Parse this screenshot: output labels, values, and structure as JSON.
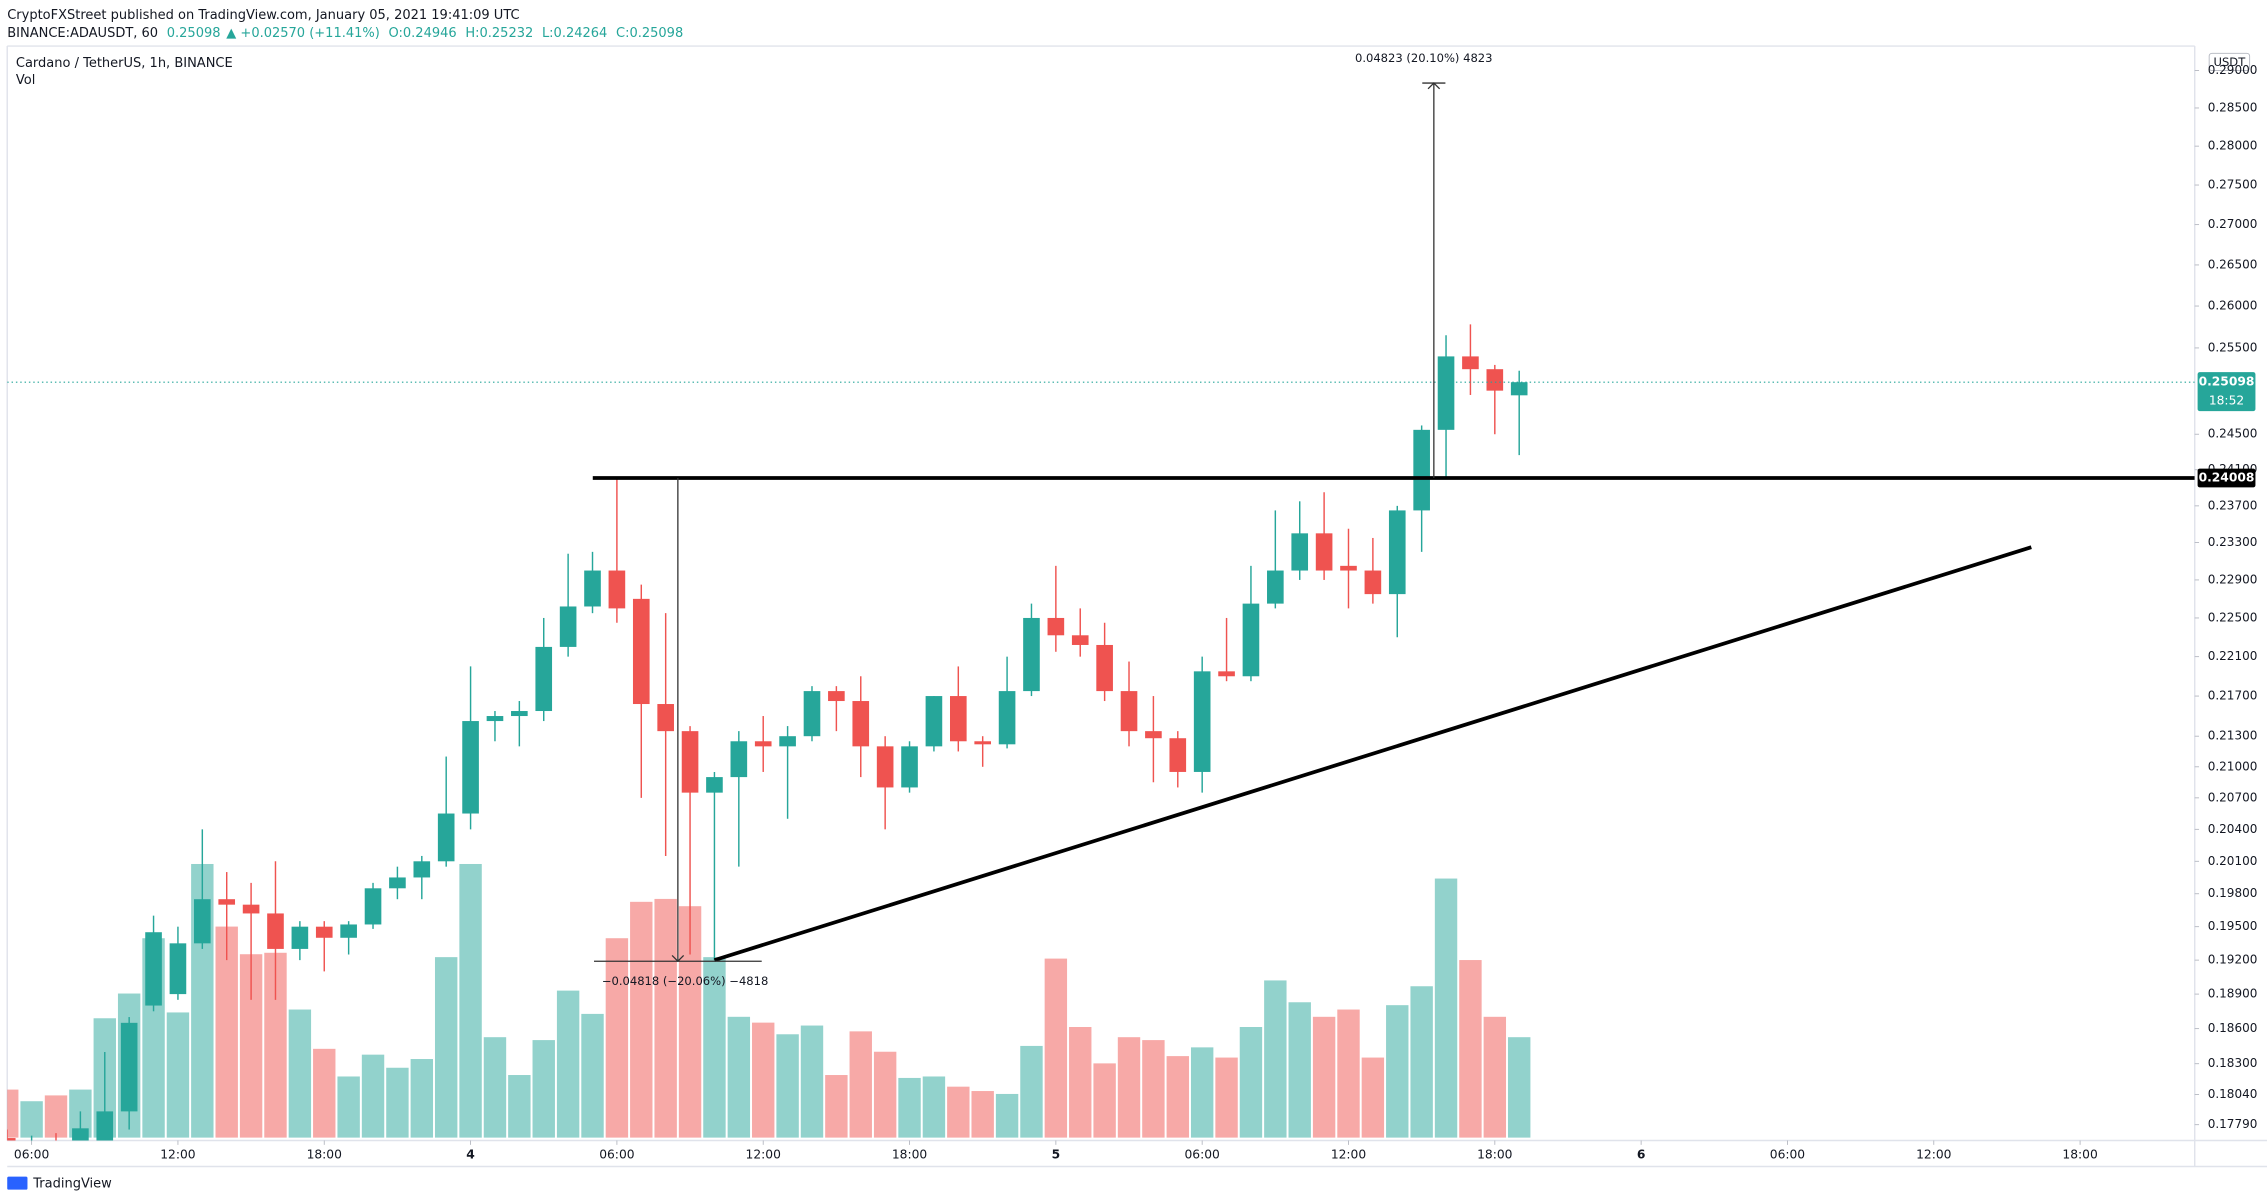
{
  "header": {
    "published": "CryptoFXStreet published on TradingView.com, January 05, 2021 19:41:09 UTC",
    "symbol": "BINANCE:ADAUSDT, 60",
    "last": "0.25098",
    "change": "▲ +0.02570 (+11.41%)",
    "ohlc": [
      "O:0.24946",
      "H:0.25232",
      "L:0.24264",
      "C:0.25098"
    ]
  },
  "chart_data": {
    "type": "candlestick",
    "title": "Cardano / TetherUS, 1h, BINANCE",
    "volume_label": "Vol",
    "currency": "USDT",
    "log_scale": true,
    "grid": false,
    "up_color": "#26a69a",
    "down_color": "#ef5350",
    "x": [
      5,
      6,
      7,
      8,
      9,
      10,
      11,
      12,
      13,
      14,
      15,
      16,
      17,
      18,
      19,
      20,
      21,
      22,
      23,
      24,
      25,
      26,
      27,
      28,
      29,
      30,
      31,
      32,
      33,
      34,
      35,
      36,
      37,
      38,
      39,
      40,
      41,
      42,
      43,
      44,
      45,
      46,
      47,
      48,
      49,
      50,
      51,
      52,
      53,
      54,
      55,
      56,
      57,
      58,
      59,
      60,
      61,
      62,
      63,
      64,
      65,
      66,
      67
    ],
    "open": [
      0.1768,
      0.1755,
      0.1765,
      0.1758,
      0.1765,
      0.179,
      0.188,
      0.189,
      0.1935,
      0.1975,
      0.197,
      0.1962,
      0.193,
      0.195,
      0.194,
      0.1952,
      0.1985,
      0.1995,
      0.201,
      0.2055,
      0.2145,
      0.215,
      0.2155,
      0.222,
      0.2262,
      0.23,
      0.227,
      0.2162,
      0.2135,
      0.2075,
      0.209,
      0.2125,
      0.212,
      0.213,
      0.2175,
      0.2165,
      0.212,
      0.208,
      0.212,
      0.217,
      0.2125,
      0.2122,
      0.2175,
      0.225,
      0.2232,
      0.2222,
      0.2175,
      0.2135,
      0.2128,
      0.2095,
      0.2195,
      0.219,
      0.2265,
      0.23,
      0.234,
      0.2305,
      0.23,
      0.2275,
      0.2365,
      0.2455,
      0.254,
      0.2525,
      0.24946
    ],
    "high": [
      0.1775,
      0.177,
      0.1772,
      0.179,
      0.184,
      0.187,
      0.196,
      0.195,
      0.204,
      0.2,
      0.199,
      0.201,
      0.1955,
      0.1955,
      0.1955,
      0.199,
      0.2005,
      0.2015,
      0.211,
      0.22,
      0.2155,
      0.2165,
      0.225,
      0.2318,
      0.232,
      0.24,
      0.2285,
      0.2255,
      0.214,
      0.2095,
      0.2135,
      0.215,
      0.214,
      0.218,
      0.218,
      0.219,
      0.213,
      0.2125,
      0.217,
      0.22,
      0.213,
      0.221,
      0.2265,
      0.2305,
      0.226,
      0.2245,
      0.2205,
      0.217,
      0.2135,
      0.221,
      0.225,
      0.2305,
      0.2365,
      0.2375,
      0.2385,
      0.2345,
      0.2335,
      0.237,
      0.246,
      0.2565,
      0.2578,
      0.253,
      0.25232
    ],
    "low": [
      0.1755,
      0.175,
      0.1752,
      0.175,
      0.176,
      0.1775,
      0.1875,
      0.1885,
      0.193,
      0.192,
      0.1885,
      0.1885,
      0.192,
      0.191,
      0.1925,
      0.1948,
      0.1975,
      0.1975,
      0.2005,
      0.204,
      0.2125,
      0.212,
      0.2145,
      0.221,
      0.2255,
      0.2245,
      0.207,
      0.2015,
      0.1925,
      0.192,
      0.2005,
      0.2095,
      0.205,
      0.2125,
      0.2135,
      0.209,
      0.204,
      0.2075,
      0.2115,
      0.2115,
      0.21,
      0.2118,
      0.217,
      0.2215,
      0.221,
      0.2165,
      0.212,
      0.2085,
      0.208,
      0.2075,
      0.2185,
      0.2185,
      0.226,
      0.229,
      0.229,
      0.226,
      0.2265,
      0.223,
      0.232,
      0.24,
      0.2495,
      0.245,
      0.24264
    ],
    "close": [
      0.176,
      0.1765,
      0.1758,
      0.1776,
      0.179,
      0.1865,
      0.1945,
      0.1935,
      0.1975,
      0.197,
      0.1962,
      0.193,
      0.195,
      0.194,
      0.1952,
      0.1985,
      0.1995,
      0.201,
      0.2055,
      0.2145,
      0.215,
      0.2155,
      0.222,
      0.2262,
      0.23,
      0.226,
      0.2162,
      0.2135,
      0.2075,
      0.209,
      0.2125,
      0.212,
      0.213,
      0.2175,
      0.2165,
      0.212,
      0.208,
      0.212,
      0.217,
      0.2125,
      0.2122,
      0.2175,
      0.225,
      0.2232,
      0.2222,
      0.2175,
      0.2135,
      0.2128,
      0.2095,
      0.2195,
      0.219,
      0.2265,
      0.23,
      0.234,
      0.23,
      0.23,
      0.2275,
      0.2365,
      0.2455,
      0.254,
      0.2525,
      0.25,
      0.25098
    ],
    "volume": [
      33,
      25,
      29,
      33,
      82,
      99,
      137,
      86,
      188,
      145,
      126,
      127,
      88,
      61,
      42,
      57,
      48,
      54,
      124,
      188,
      69,
      43,
      67,
      101,
      85,
      137,
      162,
      164,
      159,
      124,
      83,
      79,
      71,
      77,
      43,
      73,
      59,
      41,
      42,
      35,
      32,
      30,
      63,
      123,
      76,
      51,
      69,
      67,
      56,
      62,
      55,
      76,
      108,
      93,
      83,
      88,
      55,
      91,
      104,
      178,
      122,
      83,
      69
    ],
    "xlim": [
      5,
      94.7
    ],
    "xticks": [
      {
        "value": 6,
        "label": "06:00"
      },
      {
        "value": 12,
        "label": "12:00"
      },
      {
        "value": 18,
        "label": "18:00"
      },
      {
        "value": 24,
        "label": "4"
      },
      {
        "value": 30,
        "label": "06:00"
      },
      {
        "value": 36,
        "label": "12:00"
      },
      {
        "value": 42,
        "label": "18:00"
      },
      {
        "value": 48,
        "label": "5"
      },
      {
        "value": 54,
        "label": "06:00"
      },
      {
        "value": 60,
        "label": "12:00"
      },
      {
        "value": 66,
        "label": "18:00"
      },
      {
        "value": 72,
        "label": "6"
      },
      {
        "value": 78,
        "label": "06:00"
      },
      {
        "value": 84,
        "label": "12:00"
      },
      {
        "value": 90,
        "label": "18:00"
      }
    ],
    "ylim": [
      0.1766,
      0.2933
    ],
    "yticks": [
      {
        "value": 0.29,
        "label": "0.29000"
      },
      {
        "value": 0.285,
        "label": "0.28500"
      },
      {
        "value": 0.28,
        "label": "0.28000"
      },
      {
        "value": 0.275,
        "label": "0.27500"
      },
      {
        "value": 0.27,
        "label": "0.27000"
      },
      {
        "value": 0.265,
        "label": "0.26500"
      },
      {
        "value": 0.26,
        "label": "0.26000"
      },
      {
        "value": 0.255,
        "label": "0.25500"
      },
      {
        "value": 0.245,
        "label": "0.24500"
      },
      {
        "value": 0.241,
        "label": "0.24100"
      },
      {
        "value": 0.237,
        "label": "0.23700"
      },
      {
        "value": 0.233,
        "label": "0.23300"
      },
      {
        "value": 0.229,
        "label": "0.22900"
      },
      {
        "value": 0.225,
        "label": "0.22500"
      },
      {
        "value": 0.221,
        "label": "0.22100"
      },
      {
        "value": 0.217,
        "label": "0.21700"
      },
      {
        "value": 0.213,
        "label": "0.21300"
      },
      {
        "value": 0.21,
        "label": "0.21000"
      },
      {
        "value": 0.207,
        "label": "0.20700"
      },
      {
        "value": 0.204,
        "label": "0.20400"
      },
      {
        "value": 0.201,
        "label": "0.20100"
      },
      {
        "value": 0.198,
        "label": "0.19800"
      },
      {
        "value": 0.195,
        "label": "0.19500"
      },
      {
        "value": 0.192,
        "label": "0.19200"
      },
      {
        "value": 0.189,
        "label": "0.18900"
      },
      {
        "value": 0.186,
        "label": "0.18600"
      },
      {
        "value": 0.183,
        "label": "0.18300"
      },
      {
        "value": 0.1804,
        "label": "0.18040"
      },
      {
        "value": 0.1779,
        "label": "0.17790"
      }
    ],
    "last_price": 0.25098,
    "countdown": "18:52",
    "resistance": 0.24008,
    "trendline": {
      "x": [
        34,
        88
      ],
      "values": [
        0.192,
        0.2325
      ]
    },
    "measures": [
      {
        "x": 63.5,
        "from": 0.24008,
        "to": 0.28831,
        "label": "0.04823 (20.10%) 4823"
      },
      {
        "x": 32.5,
        "from": 0.24008,
        "to": 0.1919,
        "label": "−0.04818 (−20.06%) −4818"
      }
    ],
    "brand": "TradingView"
  }
}
